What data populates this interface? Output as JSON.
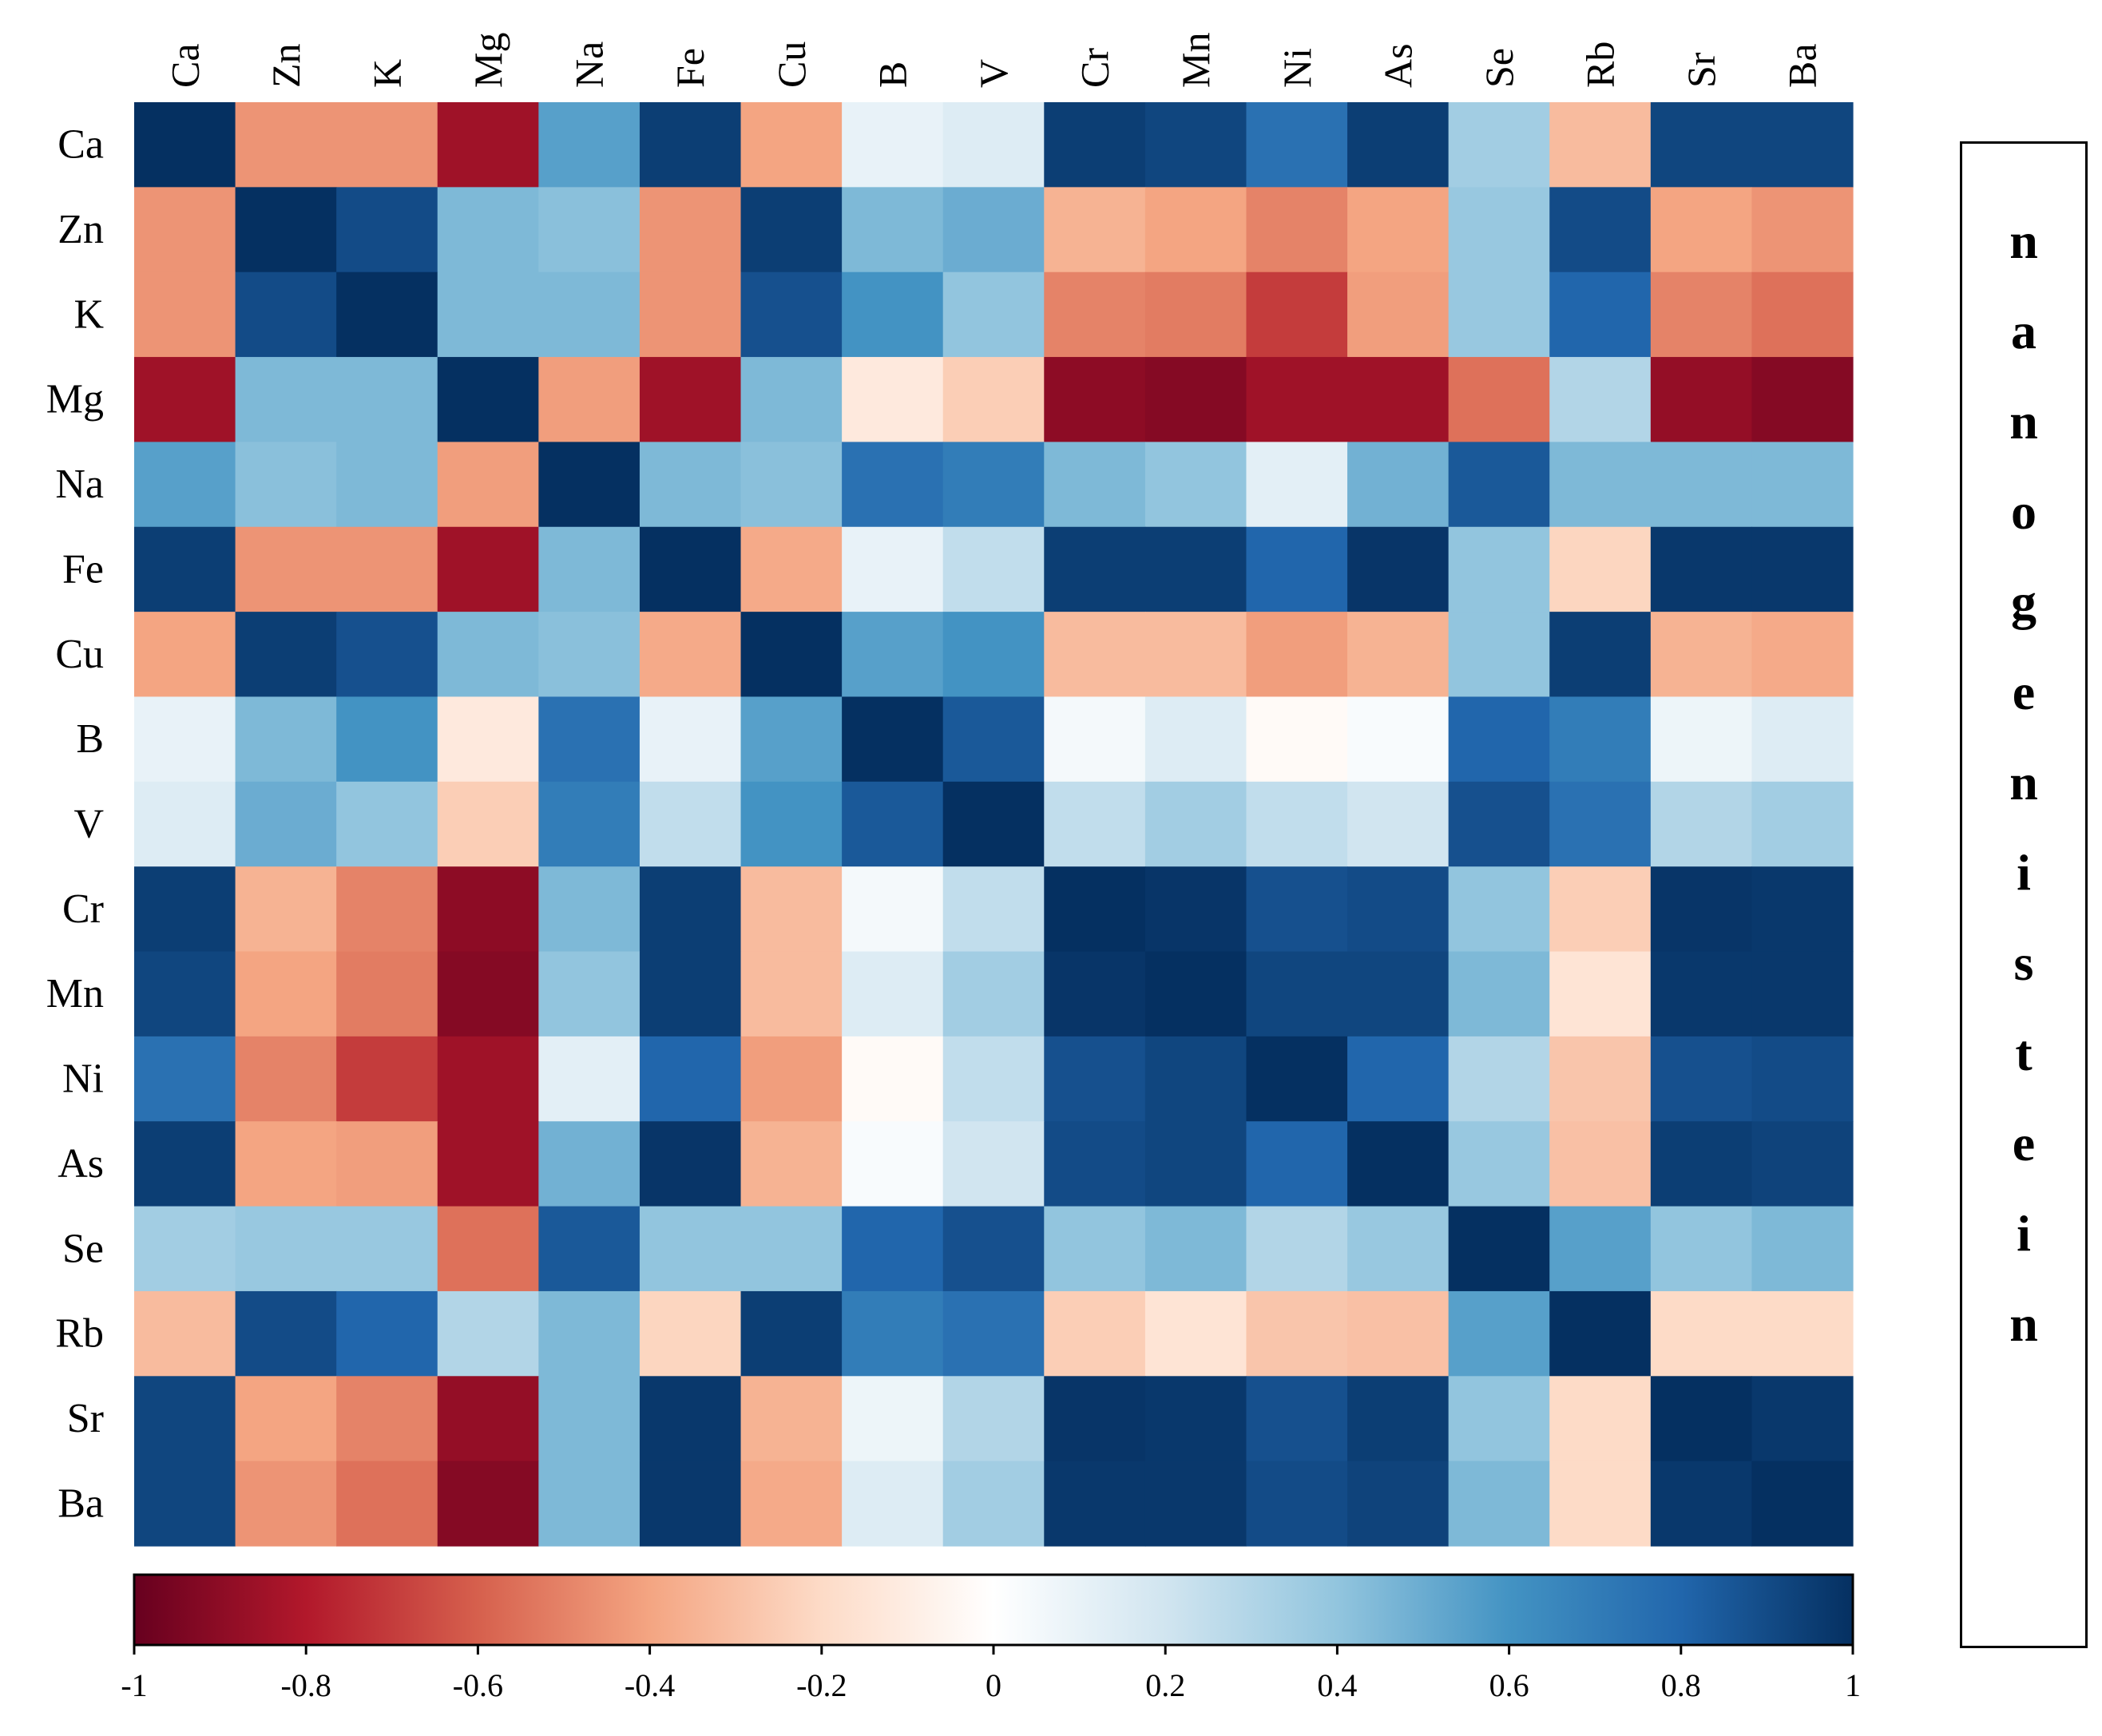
{
  "chart_data": {
    "type": "heatmap",
    "title": "",
    "variables": [
      "Ca",
      "Zn",
      "K",
      "Mg",
      "Na",
      "Fe",
      "Cu",
      "B",
      "V",
      "Cr",
      "Mn",
      "Ni",
      "As",
      "Se",
      "Rb",
      "Sr",
      "Ba"
    ],
    "matrix": [
      [
        1.0,
        -0.45,
        -0.45,
        -0.85,
        0.55,
        0.95,
        -0.4,
        0.1,
        0.15,
        0.95,
        0.92,
        0.75,
        0.95,
        0.35,
        -0.32,
        0.92,
        0.92
      ],
      [
        -0.45,
        1.0,
        0.9,
        0.45,
        0.42,
        -0.45,
        0.95,
        0.45,
        0.5,
        -0.35,
        -0.4,
        -0.5,
        -0.4,
        0.38,
        0.9,
        -0.4,
        -0.45
      ],
      [
        -0.45,
        0.9,
        1.0,
        0.45,
        0.45,
        -0.45,
        0.88,
        0.6,
        0.4,
        -0.5,
        -0.52,
        -0.7,
        -0.42,
        0.38,
        0.8,
        -0.5,
        -0.55
      ],
      [
        -0.85,
        0.45,
        0.45,
        1.0,
        -0.42,
        -0.85,
        0.45,
        -0.12,
        -0.25,
        -0.9,
        -0.92,
        -0.85,
        -0.85,
        -0.55,
        0.3,
        -0.88,
        -0.92
      ],
      [
        0.55,
        0.42,
        0.45,
        -0.42,
        1.0,
        0.45,
        0.42,
        0.75,
        0.7,
        0.45,
        0.4,
        0.12,
        0.48,
        0.85,
        0.45,
        0.45,
        0.45
      ],
      [
        0.95,
        -0.45,
        -0.45,
        -0.85,
        0.45,
        1.0,
        -0.38,
        0.1,
        0.25,
        0.95,
        0.95,
        0.8,
        0.98,
        0.4,
        -0.22,
        0.97,
        0.97
      ],
      [
        -0.4,
        0.95,
        0.88,
        0.45,
        0.42,
        -0.38,
        1.0,
        0.55,
        0.6,
        -0.32,
        -0.32,
        -0.42,
        -0.35,
        0.4,
        0.95,
        -0.35,
        -0.38
      ],
      [
        0.1,
        0.45,
        0.6,
        -0.12,
        0.75,
        0.1,
        0.55,
        1.0,
        0.85,
        0.05,
        0.15,
        -0.03,
        0.03,
        0.8,
        0.7,
        0.08,
        0.15
      ],
      [
        0.15,
        0.5,
        0.4,
        -0.25,
        0.7,
        0.25,
        0.6,
        0.85,
        1.0,
        0.25,
        0.35,
        0.25,
        0.2,
        0.88,
        0.75,
        0.3,
        0.35
      ],
      [
        0.95,
        -0.35,
        -0.5,
        -0.9,
        0.45,
        0.95,
        -0.32,
        0.05,
        0.25,
        1.0,
        0.98,
        0.88,
        0.9,
        0.4,
        -0.25,
        0.98,
        0.97
      ],
      [
        0.92,
        -0.4,
        -0.52,
        -0.92,
        0.4,
        0.95,
        -0.32,
        0.15,
        0.35,
        0.98,
        1.0,
        0.92,
        0.92,
        0.45,
        -0.15,
        0.97,
        0.97
      ],
      [
        0.75,
        -0.5,
        -0.7,
        -0.85,
        0.12,
        0.8,
        -0.42,
        -0.03,
        0.25,
        0.88,
        0.92,
        1.0,
        0.8,
        0.3,
        -0.28,
        0.88,
        0.9
      ],
      [
        0.95,
        -0.4,
        -0.42,
        -0.85,
        0.48,
        0.98,
        -0.35,
        0.03,
        0.2,
        0.9,
        0.92,
        0.8,
        1.0,
        0.38,
        -0.3,
        0.95,
        0.93
      ],
      [
        0.35,
        0.38,
        0.38,
        -0.55,
        0.85,
        0.4,
        0.4,
        0.8,
        0.88,
        0.4,
        0.45,
        0.3,
        0.38,
        1.0,
        0.55,
        0.4,
        0.45
      ],
      [
        -0.32,
        0.9,
        0.8,
        0.3,
        0.45,
        -0.22,
        0.95,
        0.7,
        0.75,
        -0.25,
        -0.15,
        -0.28,
        -0.3,
        0.55,
        1.0,
        -0.2,
        -0.2
      ],
      [
        0.92,
        -0.4,
        -0.5,
        -0.88,
        0.45,
        0.97,
        -0.35,
        0.08,
        0.3,
        0.98,
        0.97,
        0.88,
        0.95,
        0.4,
        -0.2,
        1.0,
        0.97
      ],
      [
        0.92,
        -0.45,
        -0.55,
        -0.92,
        0.45,
        0.97,
        -0.38,
        0.15,
        0.35,
        0.97,
        0.97,
        0.9,
        0.93,
        0.45,
        -0.2,
        0.97,
        1.0
      ]
    ],
    "colorbar": {
      "min": -1,
      "max": 1,
      "ticks": [
        -1,
        -0.8,
        -0.6,
        -0.4,
        -0.2,
        0,
        0.2,
        0.4,
        0.6,
        0.8,
        1
      ],
      "tick_labels": [
        "-1",
        "-0.8",
        "-0.6",
        "-0.4",
        "-0.2",
        "0",
        "0.2",
        "0.4",
        "0.6",
        "0.8",
        "1"
      ],
      "orientation": "horizontal",
      "placement": "bottom",
      "colors": [
        "#67001f",
        "#b2182b",
        "#d6604d",
        "#f4a582",
        "#fddbc7",
        "#ffffff",
        "#d1e5f0",
        "#92c5de",
        "#4393c3",
        "#2166ac",
        "#053061"
      ]
    },
    "xlabel": "",
    "ylabel": ""
  },
  "side_label": {
    "text": "nanogenistein",
    "letters": [
      "n",
      "a",
      "n",
      "o",
      "g",
      "e",
      "n",
      "i",
      "s",
      "t",
      "e",
      "i",
      "n"
    ]
  }
}
